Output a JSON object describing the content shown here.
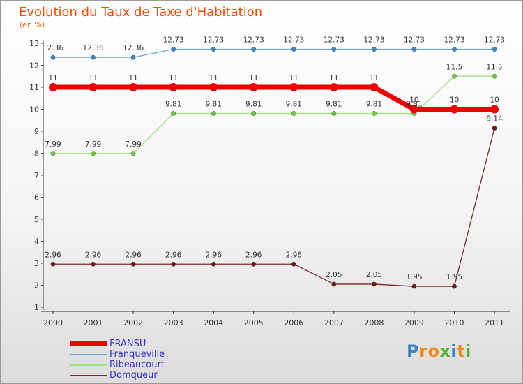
{
  "title": "Evolution du Taux de Taxe d'Habitation",
  "unit_label": "(en %)",
  "logo": {
    "text": "Proxiti",
    "letters": [
      "P",
      "r",
      "o",
      "x",
      "i",
      "t",
      "i"
    ],
    "colors": [
      "#3b82c4",
      "#f08a1c",
      "#f08a1c",
      "#55b030",
      "#3b82c4",
      "#f08a1c",
      "#55b030"
    ]
  },
  "chart_data": {
    "type": "line",
    "title": "Evolution du Taux de Taxe d'Habitation",
    "ylabel": "(en %)",
    "xlabel": "",
    "categories": [
      "2000",
      "2001",
      "2002",
      "2003",
      "2004",
      "2005",
      "2006",
      "2007",
      "2008",
      "2009",
      "2010",
      "2011"
    ],
    "y_ticks": [
      1,
      2,
      3,
      4,
      5,
      6,
      7,
      8,
      9,
      10,
      11,
      12,
      13
    ],
    "ylim": [
      1,
      13
    ],
    "series": [
      {
        "name": "FRANSU",
        "color": "#ee0000",
        "width": 7,
        "marker": 6,
        "values": [
          11,
          11,
          11,
          11,
          11,
          11,
          11,
          11,
          11,
          10,
          10,
          10
        ],
        "labels": [
          "11",
          "11",
          "11",
          "11",
          "11",
          "11",
          "11",
          "11",
          "11",
          "10",
          "10",
          "10"
        ]
      },
      {
        "name": "Franqueville",
        "color": "#6fa8d8",
        "width": 1.3,
        "marker": 3.2,
        "markerColor": "#3b87c8",
        "values": [
          12.36,
          12.36,
          12.36,
          12.73,
          12.73,
          12.73,
          12.73,
          12.73,
          12.73,
          12.73,
          12.73,
          12.73
        ],
        "labels": [
          "12.36",
          "12.36",
          "12.36",
          "12.73",
          "12.73",
          "12.73",
          "12.73",
          "12.73",
          "12.73",
          "12.73",
          "12.73",
          "12.73"
        ]
      },
      {
        "name": "Ribeaucourt",
        "color": "#9ee07a",
        "width": 1.3,
        "marker": 3.2,
        "markerColor": "#6fc842",
        "values": [
          7.99,
          7.99,
          7.99,
          9.81,
          9.81,
          9.81,
          9.81,
          9.81,
          9.81,
          9.81,
          11.5,
          11.5
        ],
        "labels": [
          "7.99",
          "7.99",
          "7.99",
          "9.81",
          "9.81",
          "9.81",
          "9.81",
          "9.81",
          "9.81",
          "9.81",
          "11.5",
          "11.5"
        ]
      },
      {
        "name": "Domqueur",
        "color": "#7a2a2a",
        "width": 1.3,
        "marker": 3.2,
        "markerColor": "#6a1a1a",
        "values": [
          2.96,
          2.96,
          2.96,
          2.96,
          2.96,
          2.96,
          2.96,
          2.05,
          2.05,
          1.95,
          1.95,
          9.14
        ],
        "labels": [
          "2.96",
          "2.96",
          "2.96",
          "2.96",
          "2.96",
          "2.96",
          "2.96",
          "2.05",
          "2.05",
          "1.95",
          "1.95",
          "9.14"
        ]
      }
    ],
    "legend": [
      "FRANSU",
      "Franqueville",
      "Ribeaucourt",
      "Domqueur"
    ]
  }
}
